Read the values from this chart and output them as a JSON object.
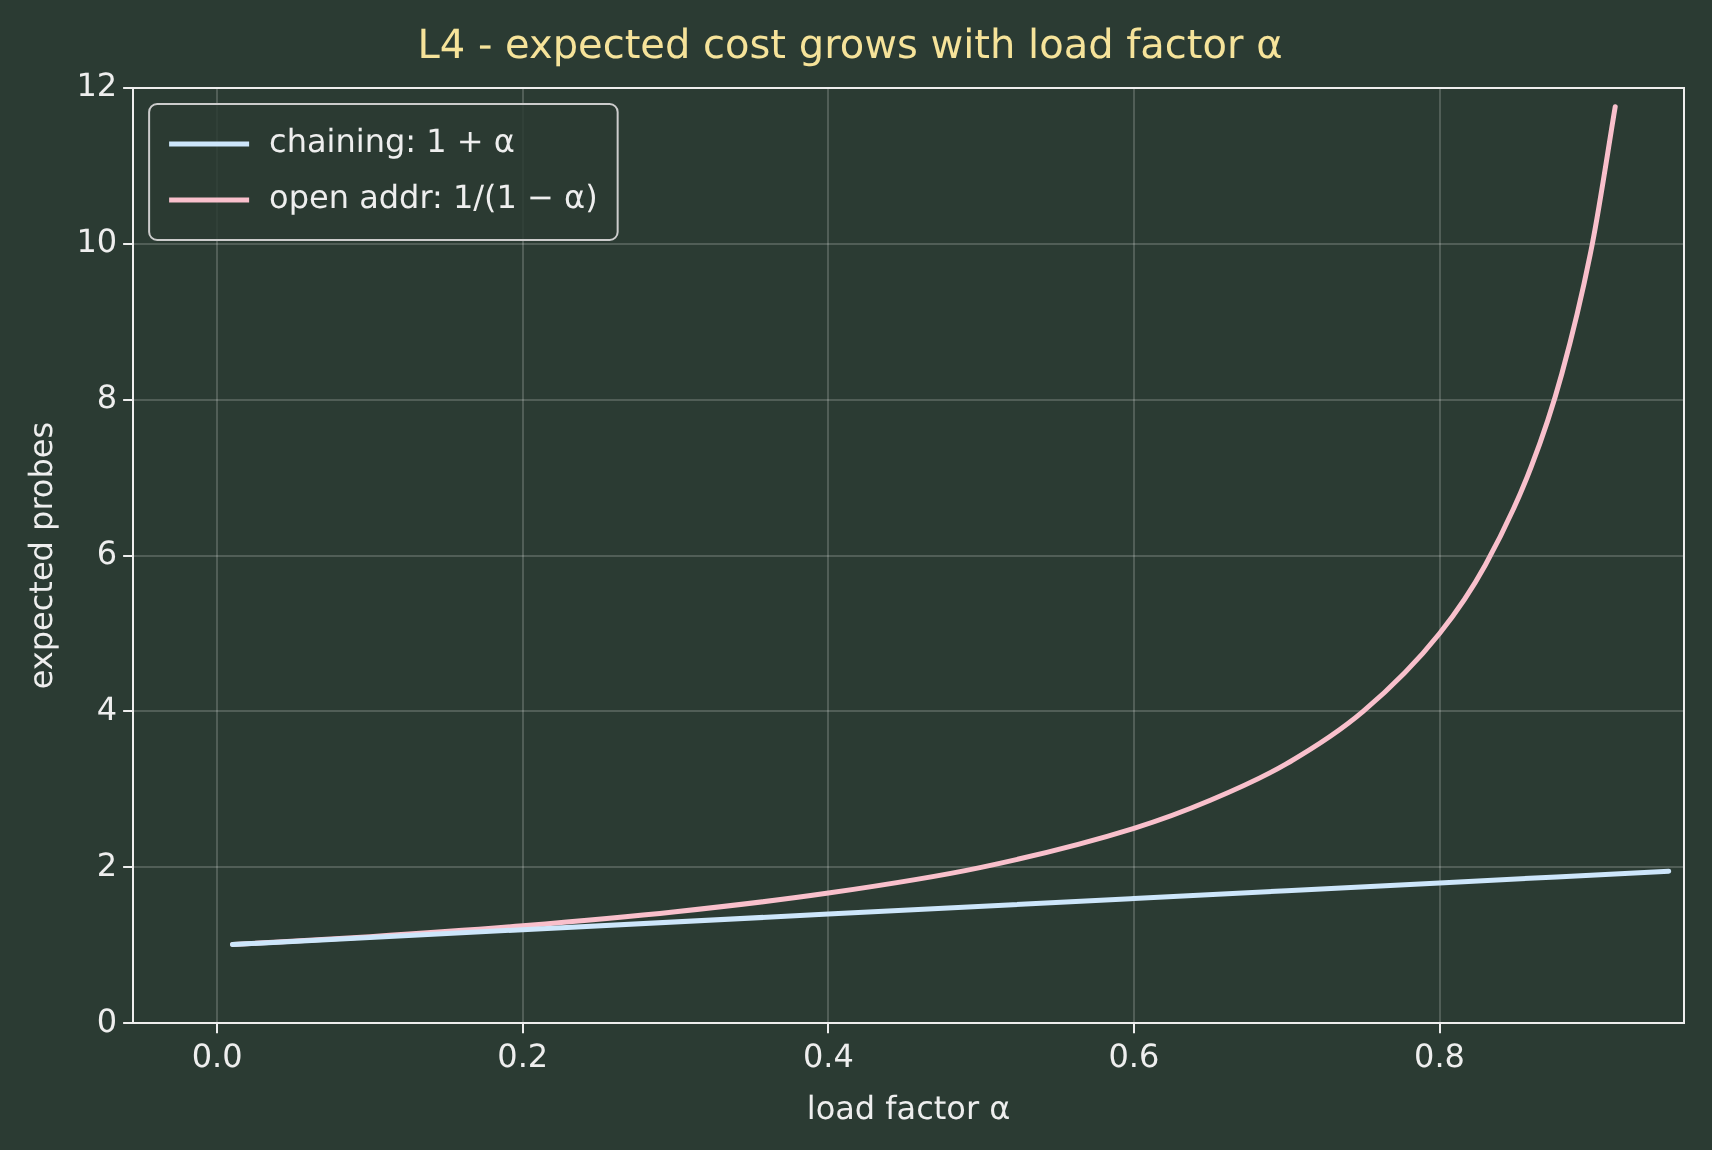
{
  "chart_data": {
    "type": "line",
    "title": "L4 - expected cost grows with load factor α",
    "xlabel": "load factor α",
    "ylabel": "expected probes",
    "xlim": [
      -0.055,
      0.96
    ],
    "ylim": [
      0,
      12
    ],
    "xticks": [
      {
        "value": 0,
        "label": "0.0"
      },
      {
        "value": 0.2,
        "label": "0.2"
      },
      {
        "value": 0.4,
        "label": "0.4"
      },
      {
        "value": 0.6,
        "label": "0.6"
      },
      {
        "value": 0.8,
        "label": "0.8"
      }
    ],
    "yticks": [
      0,
      2,
      4,
      6,
      8,
      10,
      12
    ],
    "grid": true,
    "legend": "top left",
    "marker": "none",
    "line_style": "solid",
    "series": [
      {
        "name": "chaining: 1 + α",
        "color": "#cde6fb",
        "x": [
          0.01,
          0.2,
          0.4,
          0.6,
          0.8,
          0.95
        ],
        "values": [
          1.01,
          1.2,
          1.4,
          1.6,
          1.8,
          1.95
        ]
      },
      {
        "name": "open addr: 1/(1 − α)",
        "color": "#f9c0cc",
        "x": [
          0.01,
          0.1,
          0.2,
          0.3,
          0.4,
          0.5,
          0.6,
          0.65,
          0.7,
          0.75,
          0.8,
          0.83,
          0.86,
          0.88,
          0.9,
          0.915
        ],
        "values": [
          1.01,
          1.11,
          1.25,
          1.43,
          1.67,
          2,
          2.5,
          2.86,
          3.33,
          4,
          5,
          5.88,
          7.14,
          8.33,
          10,
          11.76
        ]
      }
    ]
  }
}
